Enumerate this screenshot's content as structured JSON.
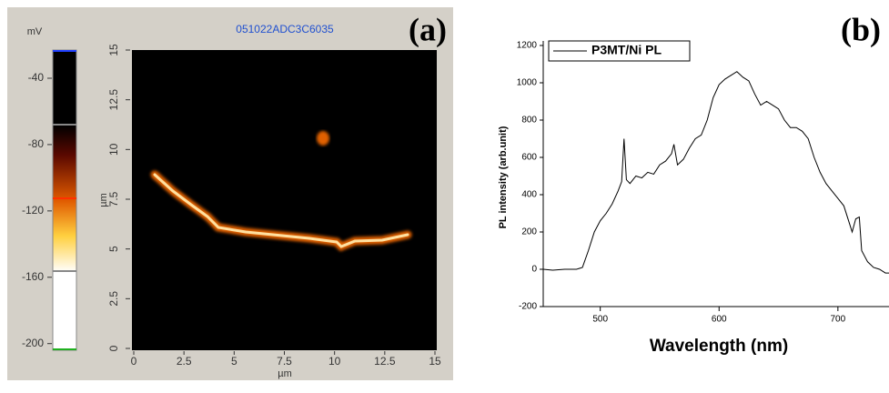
{
  "chart_data": [
    {
      "type": "image",
      "panel_label": "(a)",
      "title": "051022ADC3C6035",
      "xlabel": "µm",
      "ylabel": "µm",
      "xlim": [
        0,
        15
      ],
      "ylim": [
        0,
        15
      ],
      "xticks": [
        0,
        2.5,
        5,
        7.5,
        10,
        12.5,
        15
      ],
      "yticks": [
        0,
        2.5,
        5,
        7.5,
        10,
        12.5,
        15
      ],
      "colorbar": {
        "label": "mV",
        "lim": [
          -204,
          -23
        ],
        "ticks": [
          -40,
          -80,
          -120,
          -160,
          -200
        ]
      }
    },
    {
      "type": "line",
      "panel_label": "(b)",
      "xlabel": "Wavelength (nm)",
      "ylabel": "PL intensity (arb.unit)",
      "xlim": [
        452,
        743
      ],
      "ylim": [
        -200,
        1200
      ],
      "xticks": [
        500,
        600,
        700
      ],
      "yticks": [
        -200,
        0,
        200,
        400,
        600,
        800,
        1000,
        1200
      ],
      "legend": "upper left",
      "x": [
        452,
        460,
        470,
        480,
        485,
        490,
        495,
        500,
        505,
        510,
        515,
        518,
        520,
        522,
        525,
        530,
        535,
        540,
        545,
        550,
        555,
        560,
        562,
        565,
        570,
        575,
        580,
        585,
        590,
        595,
        600,
        605,
        610,
        615,
        620,
        625,
        630,
        635,
        640,
        645,
        650,
        655,
        660,
        665,
        670,
        675,
        680,
        685,
        690,
        695,
        700,
        705,
        710,
        712,
        715,
        718,
        720,
        725,
        730,
        735,
        740,
        743
      ],
      "series": [
        {
          "name": "P3MT/Ni PL",
          "color": "#000000",
          "values": [
            0,
            -5,
            0,
            0,
            10,
            100,
            200,
            260,
            300,
            350,
            420,
            470,
            700,
            480,
            460,
            500,
            490,
            520,
            510,
            560,
            580,
            620,
            670,
            560,
            590,
            650,
            700,
            720,
            800,
            920,
            990,
            1020,
            1040,
            1060,
            1030,
            1010,
            940,
            880,
            900,
            880,
            860,
            800,
            760,
            760,
            740,
            700,
            600,
            520,
            460,
            420,
            380,
            340,
            240,
            200,
            270,
            280,
            100,
            40,
            10,
            0,
            -20,
            -20
          ]
        }
      ]
    }
  ]
}
